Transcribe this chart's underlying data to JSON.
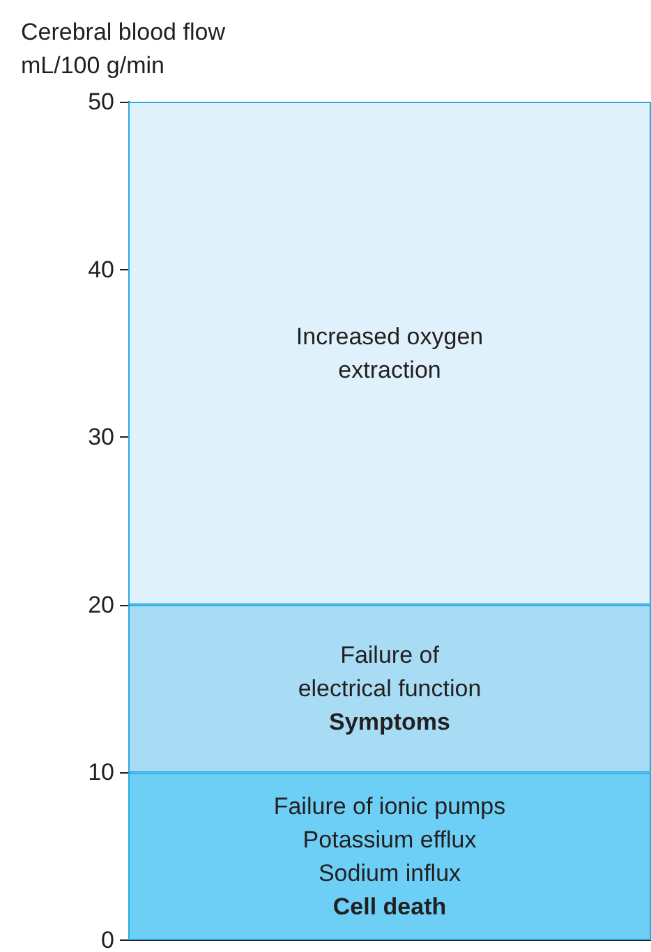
{
  "chart_data": {
    "type": "bar",
    "stacked": true,
    "ylabel": "Cerebral blood flow\nmL/100 g/min",
    "ylim": [
      0,
      50
    ],
    "yticks": [
      0,
      10,
      20,
      30,
      40,
      50
    ],
    "tick_labels": "y",
    "categories": [
      null
    ],
    "series": [
      {
        "name": "Failure of ionic pumps\nPotassium efflux\nSodium influx\nCell death",
        "color": "#6dcff6",
        "values": [
          10
        ]
      },
      {
        "name": "Failure of\nelectrical function\nSymptoms",
        "color": "#a8dcf5",
        "values": [
          10
        ]
      },
      {
        "name": "Increased oxygen\nextraction",
        "color": "#dff1fa",
        "values": [
          30
        ]
      }
    ]
  }
}
